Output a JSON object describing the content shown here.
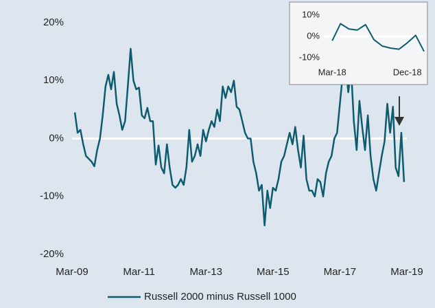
{
  "chart_data": [
    {
      "type": "line",
      "x": [
        "2009-04",
        "2009-05",
        "2009-06",
        "2009-07",
        "2009-08",
        "2009-09",
        "2009-10",
        "2009-11",
        "2009-12",
        "2010-01",
        "2010-02",
        "2010-03",
        "2010-04",
        "2010-05",
        "2010-06",
        "2010-07",
        "2010-08",
        "2010-09",
        "2010-10",
        "2010-11",
        "2010-12",
        "2011-01",
        "2011-02",
        "2011-03",
        "2011-04",
        "2011-05",
        "2011-06",
        "2011-07",
        "2011-08",
        "2011-09",
        "2011-10",
        "2011-11",
        "2011-12",
        "2012-01",
        "2012-02",
        "2012-03",
        "2012-04",
        "2012-05",
        "2012-06",
        "2012-07",
        "2012-08",
        "2012-09",
        "2012-10",
        "2012-11",
        "2012-12",
        "2013-01",
        "2013-02",
        "2013-03",
        "2013-04",
        "2013-05",
        "2013-06",
        "2013-07",
        "2013-08",
        "2013-09",
        "2013-10",
        "2013-11",
        "2013-12",
        "2014-01",
        "2014-02",
        "2014-03",
        "2014-04",
        "2014-05",
        "2014-06",
        "2014-07",
        "2014-08",
        "2014-09",
        "2014-10",
        "2014-11",
        "2014-12",
        "2015-01",
        "2015-02",
        "2015-03",
        "2015-04",
        "2015-05",
        "2015-06",
        "2015-07",
        "2015-08",
        "2015-09",
        "2015-10",
        "2015-11",
        "2015-12",
        "2016-01",
        "2016-02",
        "2016-03",
        "2016-04",
        "2016-05",
        "2016-06",
        "2016-07",
        "2016-08",
        "2016-09",
        "2016-10",
        "2016-11",
        "2016-12",
        "2017-01",
        "2017-02",
        "2017-03",
        "2017-04",
        "2017-05",
        "2017-06",
        "2017-07",
        "2017-08",
        "2017-09",
        "2017-10",
        "2017-11",
        "2017-12",
        "2018-01",
        "2018-02",
        "2018-03",
        "2018-04",
        "2018-05",
        "2018-06",
        "2018-07",
        "2018-08",
        "2018-09",
        "2018-10",
        "2018-11",
        "2018-12",
        "2019-01",
        "2019-02"
      ],
      "series": [
        {
          "name": "Russell 2000 minus Russell 1000",
          "color": "#0d5b6e",
          "values": [
            4.5,
            1,
            1.5,
            -1,
            -3,
            -3.5,
            -4,
            -4.8,
            -2,
            0,
            4,
            9,
            11,
            8.5,
            11.5,
            6,
            4,
            1.5,
            3,
            9,
            15.5,
            10,
            8.5,
            8.8,
            4,
            3.5,
            5.3,
            3,
            3,
            -4.5,
            -1.2,
            -5,
            -6,
            -1,
            -5,
            -8,
            -8.5,
            -8,
            -7,
            -8,
            -5,
            1.5,
            -4,
            -3,
            -1,
            -3,
            1.5,
            -0.5,
            1.5,
            3,
            2,
            5,
            3,
            9,
            7,
            9,
            8,
            10,
            5.5,
            5,
            3,
            1,
            0,
            0,
            -4,
            -6,
            -9,
            -8,
            -15,
            -9,
            -12,
            -8.5,
            -9,
            -7,
            -4,
            -3,
            -1,
            1,
            -1,
            2,
            -2,
            -5,
            0.5,
            -7,
            -9,
            -9,
            -10,
            -7,
            -7.5,
            -10,
            -6,
            -4,
            -3,
            0,
            1,
            6,
            11,
            13,
            8,
            12,
            3,
            -2,
            6.5,
            2,
            -2,
            4,
            -3,
            -7,
            -9,
            -6,
            -3,
            -0.5,
            6,
            1,
            5.5,
            -5,
            -6.5,
            1,
            -7.5
          ]
        }
      ],
      "xlim": [
        "2009-03",
        "2019-03"
      ],
      "xticks": [
        {
          "value": "2009-03",
          "label": "Mar-09"
        },
        {
          "value": "2011-03",
          "label": "Mar-11"
        },
        {
          "value": "2013-03",
          "label": "Mar-13"
        },
        {
          "value": "2015-03",
          "label": "Mar-15"
        },
        {
          "value": "2017-03",
          "label": "Mar-17"
        },
        {
          "value": "2019-03",
          "label": "Mar-19"
        }
      ],
      "ylim": [
        -20,
        20
      ],
      "yticks": [
        {
          "value": -20,
          "label": "-20%"
        },
        {
          "value": -10,
          "label": "-10%"
        },
        {
          "value": 0,
          "label": "0%"
        },
        {
          "value": 10,
          "label": "10%"
        },
        {
          "value": 20,
          "label": "20%"
        }
      ],
      "legend": "bottom"
    },
    {
      "type": "line",
      "x": [
        "2018-03",
        "2018-04",
        "2018-05",
        "2018-06",
        "2018-07",
        "2018-08",
        "2018-09",
        "2018-10",
        "2018-11",
        "2018-12",
        "2019-01",
        "2019-02"
      ],
      "series": [
        {
          "color": "#0d5b6e",
          "values": [
            -2,
            6,
            3.5,
            3,
            5.5,
            -1.5,
            -4.5,
            -5.5,
            -6,
            -3,
            0.5,
            -7
          ]
        }
      ],
      "xlim": [
        "2018-02",
        "2019-02"
      ],
      "xticks": [
        {
          "value": "2018-03",
          "label": "Mar-18"
        },
        {
          "value": "2018-12",
          "label": "Dec-18"
        }
      ],
      "ylim": [
        -10,
        10
      ],
      "yticks": [
        {
          "value": -10,
          "label": "-10%"
        },
        {
          "value": 0,
          "label": "0%"
        },
        {
          "value": 10,
          "label": "10%"
        }
      ]
    }
  ]
}
